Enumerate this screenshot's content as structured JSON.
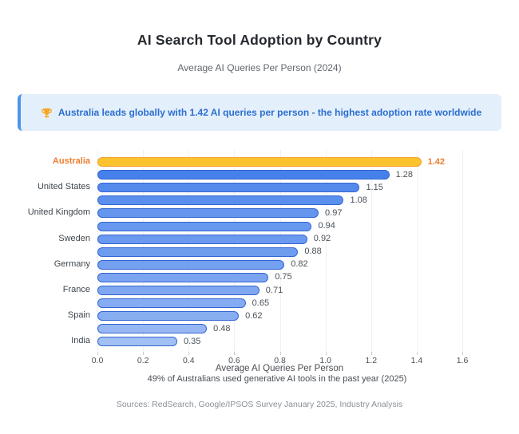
{
  "callout": {
    "icon": "trophy",
    "text": "Australia leads globally with 1.42 AI queries per person - the highest adoption rate worldwide",
    "accent_color": "#4c95eb",
    "background": "#e4effc",
    "text_color": "#2b6fd0"
  },
  "chart_data": {
    "type": "bar",
    "orientation": "horizontal",
    "title": "AI Search Tool Adoption by Country",
    "subtitle": "Average AI Queries Per Person (2024)",
    "xlabel": "Average AI Queries Per Person",
    "note": "49% of Australians used generative AI tools in the past year (2025)",
    "xlim": [
      0,
      1.6
    ],
    "xticks": [
      "0.0",
      "0.2",
      "0.4",
      "0.6",
      "0.8",
      "1.0",
      "1.2",
      "1.4",
      "1.6"
    ],
    "grid": true,
    "legend": "none",
    "highlight_color": "#ed7d2f",
    "bars": [
      {
        "label": "Australia",
        "value": 1.42,
        "fill": "#fcc32f",
        "stroke": "#f3a32c",
        "value_color": "#ed7d2f",
        "label_color": "#ed7d2f",
        "emphasis": true
      },
      {
        "label": "",
        "value": 1.28,
        "fill": "#4681eb",
        "stroke": "#3365d2",
        "value_color": "#4a5158",
        "label_color": "#3e464e",
        "emphasis": false
      },
      {
        "label": "United States",
        "value": 1.15,
        "fill": "#538aec",
        "stroke": "#3365d2",
        "value_color": "#4a5158",
        "label_color": "#3e464e",
        "emphasis": false
      },
      {
        "label": "",
        "value": 1.08,
        "fill": "#5a8fed",
        "stroke": "#3365d2",
        "value_color": "#4a5158",
        "label_color": "#3e464e",
        "emphasis": false
      },
      {
        "label": "United Kingdom",
        "value": 0.97,
        "fill": "#6596ee",
        "stroke": "#3365d2",
        "value_color": "#4a5158",
        "label_color": "#3e464e",
        "emphasis": false
      },
      {
        "label": "",
        "value": 0.94,
        "fill": "#6898ef",
        "stroke": "#3365d2",
        "value_color": "#4a5158",
        "label_color": "#3e464e",
        "emphasis": false
      },
      {
        "label": "Sweden",
        "value": 0.92,
        "fill": "#6a99ef",
        "stroke": "#3365d2",
        "value_color": "#4a5158",
        "label_color": "#3e464e",
        "emphasis": false
      },
      {
        "label": "",
        "value": 0.88,
        "fill": "#6e9cef",
        "stroke": "#3365d2",
        "value_color": "#4a5158",
        "label_color": "#3e464e",
        "emphasis": false
      },
      {
        "label": "Germany",
        "value": 0.82,
        "fill": "#74a0f0",
        "stroke": "#3365d2",
        "value_color": "#4a5158",
        "label_color": "#3e464e",
        "emphasis": false
      },
      {
        "label": "",
        "value": 0.75,
        "fill": "#7ba5f1",
        "stroke": "#3365d2",
        "value_color": "#4a5158",
        "label_color": "#3e464e",
        "emphasis": false
      },
      {
        "label": "France",
        "value": 0.71,
        "fill": "#7fa8f1",
        "stroke": "#3365d2",
        "value_color": "#4a5158",
        "label_color": "#3e464e",
        "emphasis": false
      },
      {
        "label": "",
        "value": 0.65,
        "fill": "#85acf2",
        "stroke": "#3365d2",
        "value_color": "#4a5158",
        "label_color": "#3e464e",
        "emphasis": false
      },
      {
        "label": "Spain",
        "value": 0.62,
        "fill": "#88aef2",
        "stroke": "#3365d2",
        "value_color": "#4a5158",
        "label_color": "#3e464e",
        "emphasis": false
      },
      {
        "label": "",
        "value": 0.48,
        "fill": "#96b7f4",
        "stroke": "#3365d2",
        "value_color": "#4a5158",
        "label_color": "#3e464e",
        "emphasis": false
      },
      {
        "label": "India",
        "value": 0.35,
        "fill": "#a3c0f5",
        "stroke": "#3365d2",
        "value_color": "#4a5158",
        "label_color": "#3e464e",
        "emphasis": false
      }
    ]
  },
  "footer": {
    "sources": "Sources: RedSearch, Google/IPSOS Survey January 2025, Industry Analysis"
  }
}
